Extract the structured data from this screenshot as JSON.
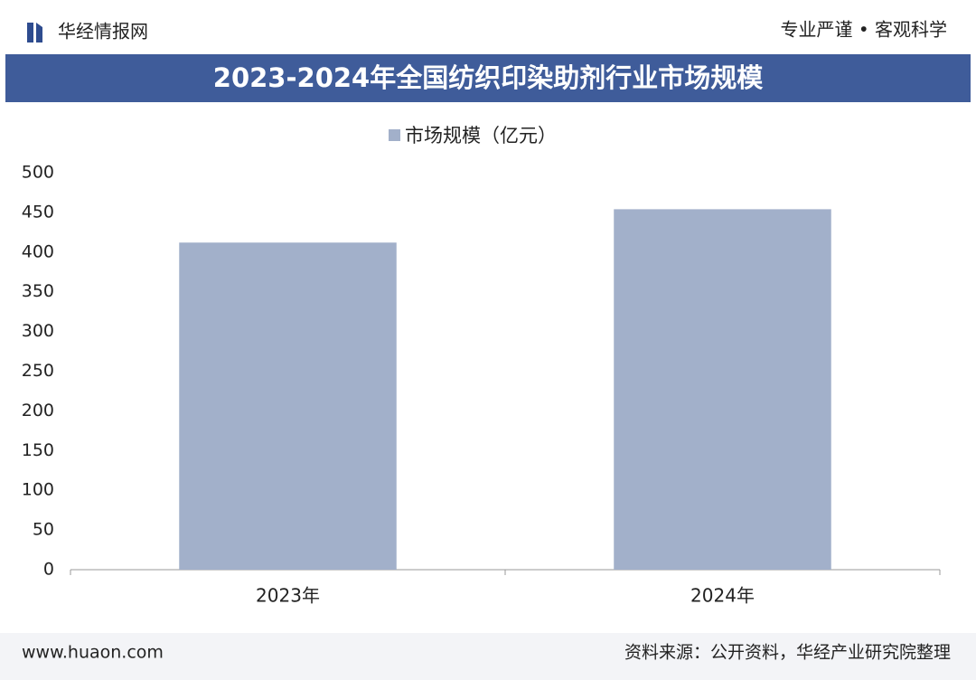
{
  "header": {
    "brand": "华经情报网",
    "slogan": "专业严谨 • 客观科学"
  },
  "chart_data": {
    "type": "bar",
    "title": "2023-2024年全国纺织印染助剂行业市场规模",
    "categories": [
      "2023年",
      "2024年"
    ],
    "series": [
      {
        "name": "市场规模（亿元）",
        "color": "#a2b0ca",
        "values": [
          412,
          454
        ]
      }
    ],
    "ylim": [
      0,
      500
    ],
    "yticks": [
      0,
      50,
      100,
      150,
      200,
      250,
      300,
      350,
      400,
      450,
      500
    ],
    "grid": false
  },
  "footer": {
    "website": "www.huaon.com",
    "source": "资料来源：公开资料，华经产业研究院整理"
  }
}
